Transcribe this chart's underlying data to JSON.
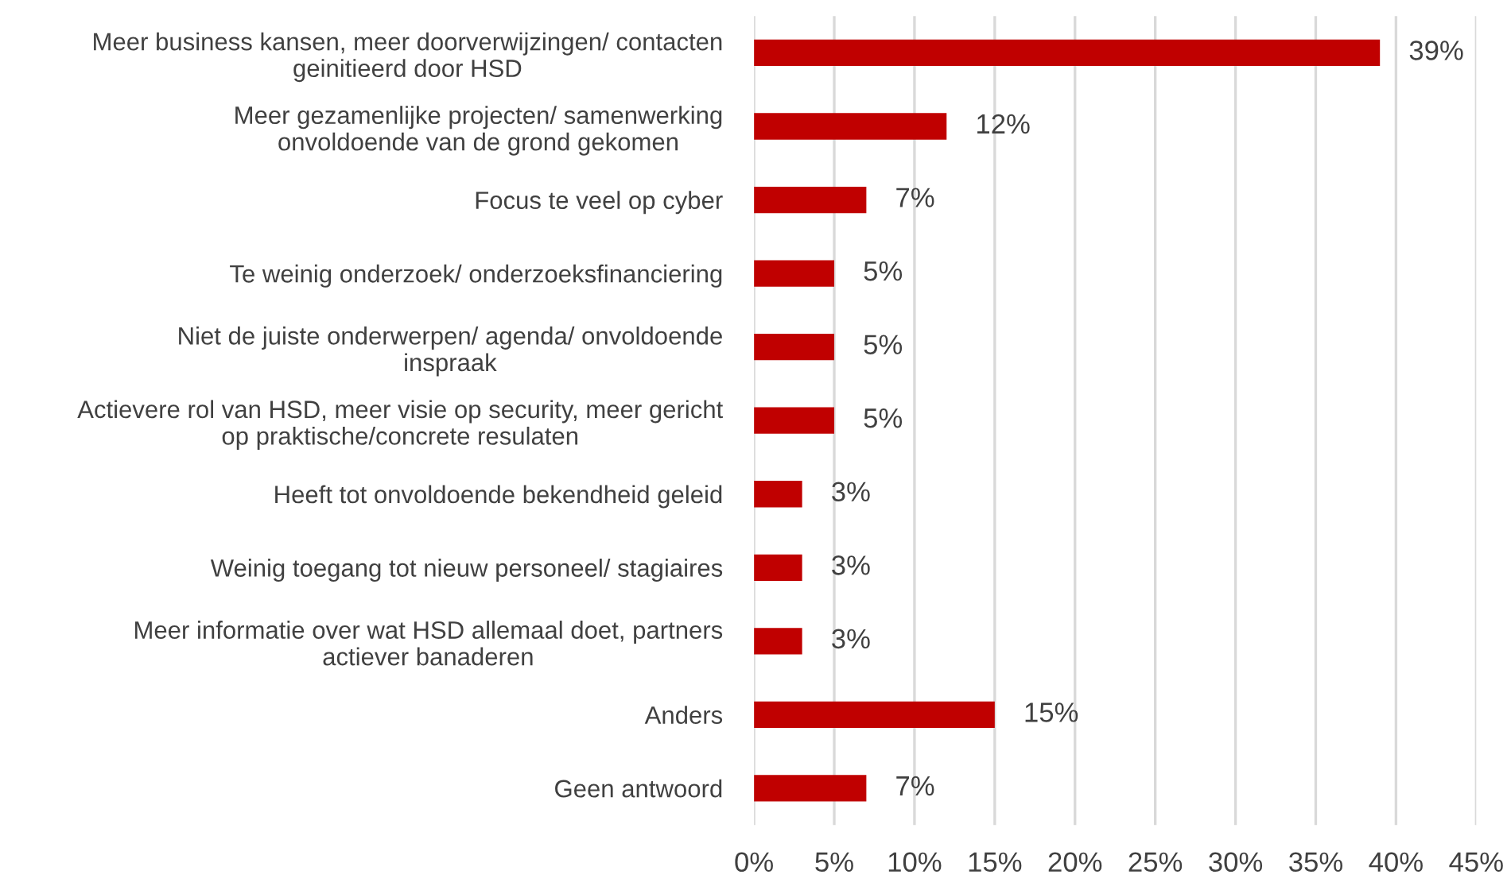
{
  "chart_data": {
    "type": "bar",
    "orientation": "horizontal",
    "categories": [
      "Meer business kansen, meer doorverwijzingen/ contacten\ngeinitieerd door HSD",
      "Meer gezamenlijke projecten/ samenwerking\nonvoldoende van de grond gekomen",
      "Focus te veel op cyber",
      "Te weinig onderzoek/ onderzoeksfinanciering",
      "Niet de juiste onderwerpen/ agenda/ onvoldoende\ninspraak",
      "Actievere rol van HSD, meer visie op security, meer gericht\nop praktische/concrete resulaten",
      "Heeft tot onvoldoende bekendheid geleid",
      "Weinig toegang tot nieuw personeel/ stagiaires",
      "Meer informatie over wat HSD allemaal doet, partners\nactiever banaderen",
      "Anders",
      "Geen antwoord"
    ],
    "values": [
      39,
      12,
      7,
      5,
      5,
      5,
      3,
      3,
      3,
      15,
      7
    ],
    "value_labels": [
      "39%",
      "12%",
      "7%",
      "5%",
      "5%",
      "5%",
      "3%",
      "3%",
      "3%",
      "15%",
      "7%"
    ],
    "color": "#c00000",
    "xlim": [
      0,
      45
    ],
    "xticks": [
      {
        "value": 0,
        "label": "0%"
      },
      {
        "value": 5,
        "label": "5%"
      },
      {
        "value": 10,
        "label": "10%"
      },
      {
        "value": 15,
        "label": "15%"
      },
      {
        "value": 20,
        "label": "20%"
      },
      {
        "value": 25,
        "label": "25%"
      },
      {
        "value": 30,
        "label": "30%"
      },
      {
        "value": 35,
        "label": "35%"
      },
      {
        "value": 40,
        "label": "40%"
      },
      {
        "value": 45,
        "label": "45%"
      }
    ],
    "grid": "x"
  }
}
